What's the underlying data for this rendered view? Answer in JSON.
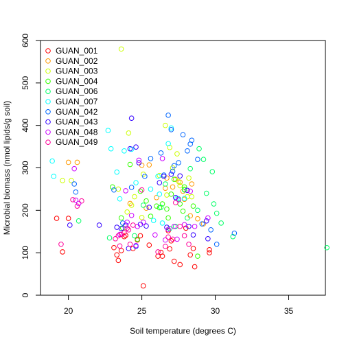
{
  "chart_data": {
    "type": "scatter",
    "xlabel": "Soil temperature (degrees C)",
    "ylabel": "Microbial biomass (nmol lipids/g soil)",
    "xlim": [
      18.1,
      37.5
    ],
    "ylim": [
      0,
      600
    ],
    "x_ticks": [
      20,
      25,
      30,
      35
    ],
    "x_tick_labels": [
      "20",
      "25",
      "30",
      "35"
    ],
    "y_ticks": [
      0,
      100,
      200,
      300,
      400,
      500,
      600
    ],
    "y_tick_labels": [
      "0",
      "100",
      "200",
      "300",
      "400",
      "500",
      "600"
    ],
    "grid": false,
    "legend_position": "top-left",
    "marker": "open-circle",
    "series": [
      {
        "name": "GUAN_001",
        "color": "#FF0000",
        "points": [
          [
            19.2,
            181
          ],
          [
            19.6,
            102
          ],
          [
            20.0,
            181
          ],
          [
            23.1,
            112
          ],
          [
            23.3,
            95
          ],
          [
            23.4,
            82
          ],
          [
            23.6,
            105
          ],
          [
            23.9,
            141
          ],
          [
            24.4,
            110
          ],
          [
            24.9,
            140
          ],
          [
            25.1,
            22
          ],
          [
            25.5,
            118
          ],
          [
            26.1,
            92
          ],
          [
            26.3,
            101
          ],
          [
            26.4,
            92
          ],
          [
            26.8,
            152
          ],
          [
            27.0,
            128
          ],
          [
            27.2,
            80
          ],
          [
            27.6,
            72
          ],
          [
            28.0,
            158
          ],
          [
            28.3,
            95
          ],
          [
            28.5,
            110
          ],
          [
            28.6,
            67
          ],
          [
            29.6,
            100
          ],
          [
            29.6,
            107
          ],
          [
            23.8,
            138
          ],
          [
            24.7,
            130
          ],
          [
            26.9,
            109
          ]
        ]
      },
      {
        "name": "GUAN_002",
        "color": "#FF9900",
        "points": [
          [
            20.0,
            313
          ],
          [
            20.6,
            313
          ],
          [
            25.0,
            306
          ],
          [
            25.5,
            307
          ],
          [
            26.7,
            276
          ],
          [
            27.1,
            255
          ],
          [
            27.3,
            273
          ],
          [
            27.6,
            266
          ],
          [
            27.9,
            226
          ],
          [
            28.4,
            262
          ],
          [
            28.8,
            180
          ],
          [
            29.2,
            168
          ],
          [
            26.6,
            252
          ],
          [
            27.8,
            245
          ],
          [
            26.0,
            230
          ],
          [
            25.3,
            205
          ],
          [
            24.2,
            216
          ],
          [
            28.3,
            187
          ]
        ]
      },
      {
        "name": "GUAN_003",
        "color": "#CCFF00",
        "points": [
          [
            23.6,
            580
          ],
          [
            19.6,
            270
          ],
          [
            20.2,
            270
          ],
          [
            23.4,
            250
          ],
          [
            24.1,
            382
          ],
          [
            25.1,
            285
          ],
          [
            26.2,
            282
          ],
          [
            26.6,
            400
          ],
          [
            26.9,
            348
          ],
          [
            27.1,
            300
          ],
          [
            27.4,
            333
          ],
          [
            27.5,
            268
          ],
          [
            27.6,
            258
          ],
          [
            28.1,
            232
          ],
          [
            28.2,
            276
          ],
          [
            28.4,
            232
          ],
          [
            24.5,
            232
          ],
          [
            24.0,
            196
          ],
          [
            25.0,
            183
          ],
          [
            26.7,
            236
          ],
          [
            27.9,
            250
          ],
          [
            24.3,
            212
          ]
        ]
      },
      {
        "name": "GUAN_004",
        "color": "#33FF00",
        "points": [
          [
            23.0,
            255
          ],
          [
            23.6,
            182
          ],
          [
            23.7,
            158
          ],
          [
            24.2,
            308
          ],
          [
            24.9,
            245
          ],
          [
            25.3,
            222
          ],
          [
            25.6,
            186
          ],
          [
            26.0,
            210
          ],
          [
            26.4,
            215
          ],
          [
            26.7,
            203
          ],
          [
            26.8,
            182
          ],
          [
            27.2,
            273
          ],
          [
            27.6,
            215
          ],
          [
            27.8,
            198
          ],
          [
            27.9,
            255
          ],
          [
            28.5,
            210
          ],
          [
            28.8,
            92
          ],
          [
            24.7,
            132
          ],
          [
            27.0,
            238
          ],
          [
            26.2,
            206
          ]
        ]
      },
      {
        "name": "GUAN_006",
        "color": "#00FF66",
        "points": [
          [
            20.7,
            175
          ],
          [
            22.8,
            135
          ],
          [
            24.5,
            140
          ],
          [
            25.1,
            212
          ],
          [
            26.3,
            207
          ],
          [
            26.6,
            262
          ],
          [
            27.5,
            227
          ],
          [
            27.9,
            248
          ],
          [
            28.3,
            298
          ],
          [
            28.9,
            345
          ],
          [
            29.2,
            320
          ],
          [
            29.4,
            240
          ],
          [
            29.8,
            291
          ],
          [
            29.9,
            215
          ],
          [
            30.1,
            193
          ],
          [
            31.2,
            138
          ],
          [
            37.6,
            112
          ],
          [
            28.1,
            182
          ],
          [
            28.8,
            200
          ],
          [
            30.4,
            170
          ],
          [
            27.3,
            162
          ],
          [
            26.9,
            157
          ]
        ]
      },
      {
        "name": "GUAN_007",
        "color": "#00FFFF",
        "points": [
          [
            18.9,
            316
          ],
          [
            19.0,
            280
          ],
          [
            22.7,
            388
          ],
          [
            22.9,
            345
          ],
          [
            23.3,
            290
          ],
          [
            23.8,
            340
          ],
          [
            24.3,
            344
          ],
          [
            24.6,
            265
          ],
          [
            25.6,
            250
          ],
          [
            26.1,
            280
          ],
          [
            26.4,
            170
          ],
          [
            26.8,
            357
          ],
          [
            27.0,
            394
          ],
          [
            27.4,
            228
          ],
          [
            27.9,
            228
          ],
          [
            23.5,
            227
          ],
          [
            26.2,
            238
          ],
          [
            25.8,
            176
          ]
        ]
      },
      {
        "name": "GUAN_042",
        "color": "#0066FF",
        "points": [
          [
            20.4,
            262
          ],
          [
            20.5,
            243
          ],
          [
            23.1,
            248
          ],
          [
            24.3,
            254
          ],
          [
            25.2,
            280
          ],
          [
            25.6,
            322
          ],
          [
            26.3,
            335
          ],
          [
            26.8,
            424
          ],
          [
            27.0,
            390
          ],
          [
            27.2,
            305
          ],
          [
            27.5,
            312
          ],
          [
            27.8,
            378
          ],
          [
            28.1,
            340
          ],
          [
            28.3,
            356
          ],
          [
            28.4,
            365
          ],
          [
            28.8,
            320
          ],
          [
            29.1,
            168
          ],
          [
            29.7,
            154
          ],
          [
            30.1,
            120
          ],
          [
            31.3,
            146
          ],
          [
            27.1,
            292
          ],
          [
            26.5,
            283
          ],
          [
            24.6,
            115
          ],
          [
            23.7,
            170
          ]
        ]
      },
      {
        "name": "GUAN_043",
        "color": "#3300FF",
        "points": [
          [
            20.1,
            165
          ],
          [
            22.1,
            165
          ],
          [
            23.3,
            160
          ],
          [
            23.9,
            165
          ],
          [
            24.2,
            345
          ],
          [
            24.3,
            417
          ],
          [
            24.6,
            349
          ],
          [
            24.8,
            312
          ],
          [
            24.9,
            167
          ],
          [
            25.3,
            163
          ],
          [
            25.5,
            207
          ],
          [
            26.2,
            265
          ],
          [
            26.5,
            280
          ],
          [
            27.0,
            285
          ],
          [
            27.3,
            230
          ],
          [
            27.6,
            281
          ],
          [
            28.1,
            247
          ],
          [
            28.2,
            162
          ],
          [
            28.5,
            142
          ],
          [
            29.4,
            175
          ],
          [
            29.5,
            133
          ],
          [
            23.6,
            157
          ],
          [
            24.1,
            110
          ],
          [
            26.7,
            160
          ]
        ]
      },
      {
        "name": "GUAN_048",
        "color": "#CC00FF",
        "points": [
          [
            20.4,
            298
          ],
          [
            20.5,
            224
          ],
          [
            20.7,
            216
          ],
          [
            23.5,
            143
          ],
          [
            23.9,
            246
          ],
          [
            24.0,
            172
          ],
          [
            24.3,
            188
          ],
          [
            24.6,
            117
          ],
          [
            24.8,
            318
          ],
          [
            25.1,
            172
          ],
          [
            26.4,
            322
          ],
          [
            26.6,
            130
          ],
          [
            26.8,
            155
          ],
          [
            27.2,
            162
          ],
          [
            27.4,
            132
          ],
          [
            27.5,
            225
          ],
          [
            27.9,
            166
          ],
          [
            28.3,
            245
          ],
          [
            28.6,
            162
          ],
          [
            29.5,
            182
          ],
          [
            24.7,
            162
          ],
          [
            25.9,
            142
          ]
        ]
      },
      {
        "name": "GUAN_049",
        "color": "#FF0099",
        "points": [
          [
            19.5,
            120
          ],
          [
            20.3,
            225
          ],
          [
            20.6,
            210
          ],
          [
            20.9,
            222
          ],
          [
            23.4,
            140
          ],
          [
            23.6,
            143
          ],
          [
            23.8,
            147
          ],
          [
            24.0,
            158
          ],
          [
            24.1,
            154
          ],
          [
            24.2,
            120
          ],
          [
            24.4,
            165
          ],
          [
            25.0,
            248
          ],
          [
            26.1,
            102
          ],
          [
            26.8,
            137
          ],
          [
            27.1,
            132
          ],
          [
            27.3,
            218
          ],
          [
            27.6,
            162
          ],
          [
            27.9,
            140
          ],
          [
            28.2,
            120
          ],
          [
            23.2,
            133
          ],
          [
            23.5,
            116
          ],
          [
            26.6,
            115
          ]
        ]
      }
    ]
  }
}
